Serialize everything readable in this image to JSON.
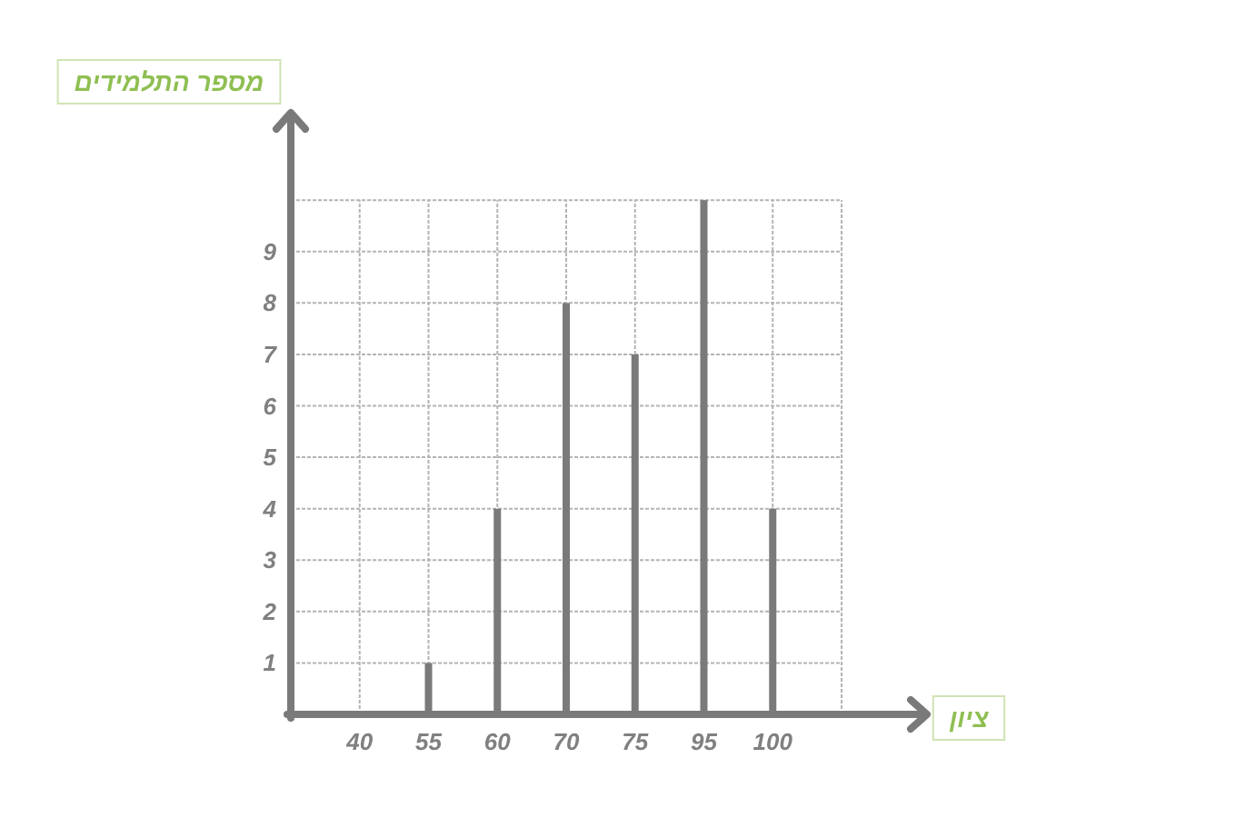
{
  "chart_data": {
    "type": "bar",
    "xlabel": "ציון",
    "ylabel": "מספר התלמידים",
    "categories": [
      "40",
      "55",
      "60",
      "70",
      "75",
      "95",
      "100"
    ],
    "values": [
      0,
      1,
      4,
      8,
      7,
      10,
      4
    ],
    "color": "#7a7a7a",
    "ylim": [
      0,
      11.7
    ],
    "yticks": [
      1,
      2,
      3,
      4,
      5,
      6,
      7,
      8,
      9,
      {
        "value": 10,
        "label": null
      }
    ],
    "grid": true
  }
}
